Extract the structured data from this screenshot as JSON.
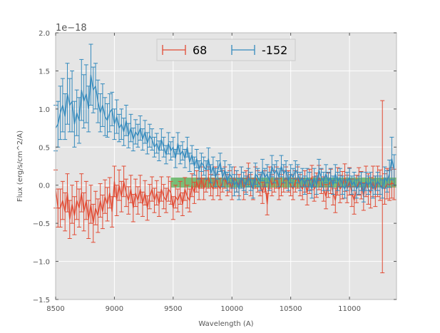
{
  "chart_data": {
    "type": "line",
    "subtype": "errorbar",
    "title": "",
    "xlabel": "Wavelength (A)",
    "ylabel": "Flux (erg/s/cm^2/A)",
    "offset_label": "1e−18",
    "xlim": [
      8500,
      11400
    ],
    "ylim": [
      -1.5,
      2.0
    ],
    "xticks": [
      8500,
      9000,
      9500,
      10000,
      10500,
      11000
    ],
    "xtick_labels": [
      "8500",
      "9000",
      "9500",
      "10000",
      "10500",
      "11000"
    ],
    "yticks": [
      -1.5,
      -1.0,
      -0.5,
      0.0,
      0.5,
      1.0,
      1.5,
      2.0
    ],
    "ytick_labels": [
      "−1.5",
      "−1.0",
      "−0.5",
      "0.0",
      "0.5",
      "1.0",
      "1.5",
      "2.0"
    ],
    "grid": true,
    "legend_position": "top-center",
    "band": {
      "x_range": [
        9480,
        11400
      ],
      "y_range": [
        -0.03,
        0.1
      ],
      "color": "#2ca02c",
      "label": ""
    },
    "series": [
      {
        "name": "68",
        "color": "#e24a33",
        "x": [
          8500,
          8520,
          8540,
          8560,
          8580,
          8600,
          8620,
          8640,
          8660,
          8680,
          8700,
          8720,
          8740,
          8760,
          8780,
          8800,
          8820,
          8840,
          8860,
          8880,
          8900,
          8920,
          8940,
          8960,
          8980,
          9000,
          9020,
          9040,
          9060,
          9080,
          9100,
          9120,
          9140,
          9160,
          9180,
          9200,
          9220,
          9240,
          9260,
          9280,
          9300,
          9320,
          9340,
          9360,
          9380,
          9400,
          9420,
          9440,
          9460,
          9480,
          9500,
          9520,
          9540,
          9560,
          9580,
          9600,
          9620,
          9640,
          9660,
          9680,
          9700,
          9720,
          9740,
          9760,
          9780,
          9800,
          9820,
          9840,
          9860,
          9880,
          9900,
          9920,
          9940,
          9960,
          9980,
          10000,
          10020,
          10040,
          10060,
          10080,
          10100,
          10120,
          10140,
          10160,
          10180,
          10200,
          10220,
          10240,
          10260,
          10280,
          10300,
          10320,
          10340,
          10360,
          10380,
          10400,
          10420,
          10440,
          10460,
          10480,
          10500,
          10520,
          10540,
          10560,
          10580,
          10600,
          10620,
          10640,
          10660,
          10680,
          10700,
          10720,
          10740,
          10760,
          10780,
          10800,
          10820,
          10840,
          10860,
          10880,
          10900,
          10920,
          10940,
          10960,
          10980,
          11000,
          11020,
          11040,
          11060,
          11080,
          11100,
          11120,
          11140,
          11160,
          11180,
          11200,
          11220,
          11240,
          11260,
          11280,
          11300,
          11320,
          11340,
          11360,
          11380
        ],
        "y": [
          -0.05,
          -0.3,
          -0.3,
          -0.2,
          -0.35,
          -0.1,
          -0.45,
          -0.25,
          -0.4,
          -0.2,
          -0.3,
          -0.1,
          -0.35,
          -0.2,
          -0.45,
          -0.25,
          -0.5,
          -0.3,
          -0.4,
          -0.2,
          -0.35,
          -0.15,
          -0.25,
          -0.1,
          -0.35,
          0.05,
          -0.2,
          0.0,
          -0.15,
          0.05,
          -0.1,
          -0.2,
          -0.05,
          -0.3,
          -0.1,
          -0.2,
          -0.05,
          -0.25,
          -0.1,
          -0.3,
          -0.15,
          -0.05,
          -0.2,
          -0.1,
          -0.25,
          -0.05,
          -0.15,
          -0.2,
          -0.05,
          -0.1,
          -0.3,
          -0.15,
          -0.2,
          -0.1,
          -0.25,
          -0.05,
          -0.15,
          -0.2,
          0.0,
          -0.1,
          0.05,
          -0.05,
          0.1,
          -0.05,
          0.05,
          0.1,
          0.0,
          -0.05,
          0.1,
          0.0,
          -0.05,
          0.05,
          0.1,
          0.0,
          0.05,
          -0.05,
          0.1,
          0.05,
          0.0,
          0.1,
          -0.05,
          0.05,
          0.15,
          0.0,
          -0.05,
          0.1,
          0.05,
          0.0,
          -0.1,
          0.05,
          -0.25,
          0.1,
          0.0,
          0.05,
          0.1,
          -0.05,
          0.0,
          0.05,
          0.1,
          0.05,
          0.0,
          -0.05,
          0.05,
          0.1,
          0.0,
          -0.05,
          0.05,
          -0.1,
          0.05,
          0.1,
          -0.05,
          0.0,
          0.1,
          0.05,
          -0.05,
          -0.15,
          0.0,
          0.05,
          -0.1,
          -0.2,
          0.05,
          -0.05,
          0.0,
          0.1,
          -0.05,
          0.05,
          -0.1,
          -0.2,
          -0.05,
          0.05,
          0.0,
          -0.15,
          0.05,
          -0.05,
          -0.1,
          0.05,
          -0.08,
          0.05,
          0.0,
          -0.02,
          -0.05,
          0.02,
          0.0,
          0.03,
          0.01
        ],
        "yerr": [
          0.25,
          0.25,
          0.25,
          0.25,
          0.25,
          0.25,
          0.25,
          0.25,
          0.25,
          0.25,
          0.25,
          0.25,
          0.25,
          0.25,
          0.25,
          0.25,
          0.25,
          0.22,
          0.22,
          0.22,
          0.22,
          0.22,
          0.22,
          0.2,
          0.2,
          0.2,
          0.2,
          0.2,
          0.2,
          0.2,
          0.18,
          0.18,
          0.18,
          0.18,
          0.18,
          0.18,
          0.18,
          0.16,
          0.16,
          0.16,
          0.16,
          0.16,
          0.16,
          0.16,
          0.16,
          0.16,
          0.16,
          0.16,
          0.16,
          0.15,
          0.15,
          0.15,
          0.15,
          0.15,
          0.15,
          0.15,
          0.15,
          0.15,
          0.15,
          0.14,
          0.14,
          0.14,
          0.14,
          0.14,
          0.14,
          0.14,
          0.14,
          0.14,
          0.14,
          0.14,
          0.14,
          0.14,
          0.14,
          0.14,
          0.14,
          0.14,
          0.14,
          0.14,
          0.14,
          0.14,
          0.14,
          0.14,
          0.14,
          0.14,
          0.14,
          0.14,
          0.14,
          0.14,
          0.14,
          0.14,
          0.14,
          0.14,
          0.14,
          0.14,
          0.14,
          0.14,
          0.14,
          0.14,
          0.14,
          0.14,
          0.14,
          0.14,
          0.14,
          0.14,
          0.14,
          0.14,
          0.14,
          0.16,
          0.16,
          0.16,
          0.16,
          0.16,
          0.16,
          0.16,
          0.16,
          0.16,
          0.16,
          0.16,
          0.16,
          0.16,
          0.18,
          0.18,
          0.18,
          0.18,
          0.18,
          0.18,
          0.18,
          0.18,
          0.18,
          0.18,
          0.18,
          0.18,
          0.2,
          0.2,
          0.2,
          0.2,
          0.2,
          0.2,
          0.2,
          1.13,
          0.2,
          0.2,
          0.2,
          0.2,
          0.2
        ]
      },
      {
        "name": "-152",
        "color": "#348abd",
        "x": [
          8500,
          8520,
          8540,
          8560,
          8580,
          8600,
          8620,
          8640,
          8660,
          8680,
          8700,
          8720,
          8740,
          8760,
          8780,
          8800,
          8820,
          8840,
          8860,
          8880,
          8900,
          8920,
          8940,
          8960,
          8980,
          9000,
          9020,
          9040,
          9060,
          9080,
          9100,
          9120,
          9140,
          9160,
          9180,
          9200,
          9220,
          9240,
          9260,
          9280,
          9300,
          9320,
          9340,
          9360,
          9380,
          9400,
          9420,
          9440,
          9460,
          9480,
          9500,
          9520,
          9540,
          9560,
          9580,
          9600,
          9620,
          9640,
          9660,
          9680,
          9700,
          9720,
          9740,
          9760,
          9780,
          9800,
          9820,
          9840,
          9860,
          9880,
          9900,
          9920,
          9940,
          9960,
          9980,
          10000,
          10020,
          10040,
          10060,
          10080,
          10100,
          10120,
          10140,
          10160,
          10180,
          10200,
          10220,
          10240,
          10260,
          10280,
          10300,
          10320,
          10340,
          10360,
          10380,
          10400,
          10420,
          10440,
          10460,
          10480,
          10500,
          10520,
          10540,
          10560,
          10580,
          10600,
          10620,
          10640,
          10660,
          10680,
          10700,
          10720,
          10740,
          10760,
          10780,
          10800,
          10820,
          10840,
          10860,
          10880,
          10900,
          10920,
          10940,
          10960,
          10980,
          11000,
          11020,
          11040,
          11060,
          11080,
          11100,
          11120,
          11140,
          11160,
          11180,
          11200,
          11220,
          11240,
          11260,
          11280,
          11300,
          11320,
          11340,
          11360,
          11380
        ],
        "y": [
          0.75,
          0.8,
          0.95,
          1.05,
          0.9,
          1.2,
          1.05,
          1.1,
          0.8,
          0.95,
          0.85,
          1.25,
          1.1,
          1.2,
          1.0,
          1.45,
          1.25,
          1.3,
          1.1,
          0.95,
          1.05,
          0.9,
          0.85,
          0.95,
          1.0,
          0.8,
          0.9,
          0.75,
          0.8,
          0.7,
          0.85,
          0.65,
          0.75,
          0.6,
          0.7,
          0.65,
          0.75,
          0.6,
          0.7,
          0.55,
          0.65,
          0.6,
          0.5,
          0.55,
          0.45,
          0.6,
          0.5,
          0.4,
          0.55,
          0.45,
          0.5,
          0.35,
          0.55,
          0.4,
          0.45,
          0.35,
          0.5,
          0.3,
          0.4,
          0.25,
          0.35,
          0.2,
          0.3,
          0.25,
          0.2,
          0.35,
          0.15,
          0.25,
          0.1,
          0.2,
          0.3,
          0.1,
          0.2,
          0.05,
          0.15,
          0.1,
          0.0,
          0.05,
          -0.05,
          0.1,
          0.05,
          0.0,
          0.1,
          0.05,
          -0.05,
          0.15,
          0.1,
          0.05,
          0.2,
          0.1,
          0.15,
          0.05,
          0.25,
          0.15,
          0.2,
          0.1,
          0.25,
          0.15,
          0.2,
          0.05,
          0.15,
          0.1,
          0.2,
          0.15,
          0.05,
          0.1,
          0.0,
          0.1,
          0.05,
          -0.05,
          0.1,
          0.0,
          0.2,
          0.1,
          0.05,
          0.15,
          0.05,
          0.1,
          0.0,
          0.15,
          0.05,
          0.1,
          0.0,
          -0.05,
          0.05,
          0.1,
          0.0,
          0.05,
          -0.05,
          0.0,
          0.05,
          -0.1,
          0.05,
          0.0,
          0.05,
          -0.05,
          0.0,
          0.05,
          0.0,
          -0.05,
          0.1,
          0.05,
          0.15,
          0.35,
          0.2
        ],
        "yerr": [
          0.3,
          0.3,
          0.35,
          0.35,
          0.3,
          0.4,
          0.35,
          0.4,
          0.3,
          0.3,
          0.3,
          0.4,
          0.35,
          0.38,
          0.3,
          0.4,
          0.3,
          0.3,
          0.28,
          0.25,
          0.28,
          0.25,
          0.22,
          0.25,
          0.22,
          0.2,
          0.22,
          0.18,
          0.2,
          0.18,
          0.2,
          0.16,
          0.18,
          0.15,
          0.16,
          0.15,
          0.16,
          0.14,
          0.15,
          0.14,
          0.15,
          0.14,
          0.13,
          0.13,
          0.13,
          0.14,
          0.13,
          0.12,
          0.14,
          0.12,
          0.13,
          0.12,
          0.14,
          0.12,
          0.12,
          0.12,
          0.13,
          0.12,
          0.12,
          0.12,
          0.12,
          0.12,
          0.12,
          0.12,
          0.12,
          0.14,
          0.12,
          0.12,
          0.12,
          0.12,
          0.12,
          0.12,
          0.12,
          0.12,
          0.12,
          0.14,
          0.14,
          0.14,
          0.14,
          0.14,
          0.12,
          0.12,
          0.12,
          0.12,
          0.12,
          0.14,
          0.12,
          0.12,
          0.14,
          0.12,
          0.12,
          0.12,
          0.14,
          0.12,
          0.12,
          0.12,
          0.14,
          0.12,
          0.12,
          0.12,
          0.12,
          0.12,
          0.12,
          0.12,
          0.12,
          0.12,
          0.12,
          0.12,
          0.12,
          0.12,
          0.12,
          0.12,
          0.14,
          0.12,
          0.12,
          0.12,
          0.12,
          0.12,
          0.12,
          0.12,
          0.12,
          0.12,
          0.12,
          0.12,
          0.12,
          0.12,
          0.12,
          0.12,
          0.12,
          0.12,
          0.12,
          0.12,
          0.12,
          0.12,
          0.12,
          0.12,
          0.12,
          0.12,
          0.12,
          0.12,
          0.14,
          0.14,
          0.18,
          0.28,
          0.2
        ]
      }
    ]
  }
}
